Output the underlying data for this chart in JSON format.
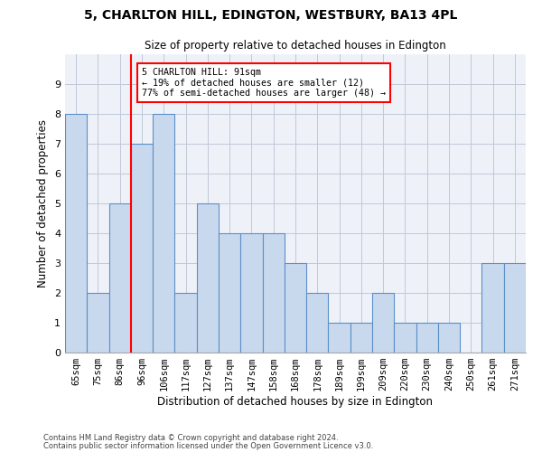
{
  "title": "5, CHARLTON HILL, EDINGTON, WESTBURY, BA13 4PL",
  "subtitle": "Size of property relative to detached houses in Edington",
  "xlabel": "Distribution of detached houses by size in Edington",
  "ylabel": "Number of detached properties",
  "footer1": "Contains HM Land Registry data © Crown copyright and database right 2024.",
  "footer2": "Contains public sector information licensed under the Open Government Licence v3.0.",
  "categories": [
    "65sqm",
    "75sqm",
    "86sqm",
    "96sqm",
    "106sqm",
    "117sqm",
    "127sqm",
    "137sqm",
    "147sqm",
    "158sqm",
    "168sqm",
    "178sqm",
    "189sqm",
    "199sqm",
    "209sqm",
    "220sqm",
    "230sqm",
    "240sqm",
    "250sqm",
    "261sqm",
    "271sqm"
  ],
  "values": [
    8,
    2,
    5,
    7,
    8,
    2,
    5,
    4,
    4,
    4,
    3,
    2,
    1,
    1,
    2,
    1,
    1,
    1,
    0,
    3,
    3
  ],
  "bar_color": "#c9d9ed",
  "bar_edgecolor": "#5b8fc9",
  "grid_color": "#c0c8d8",
  "bg_color": "#eef2f8",
  "property_line_x": 2.5,
  "annotation_text": "5 CHARLTON HILL: 91sqm\n← 19% of detached houses are smaller (12)\n77% of semi-detached houses are larger (48) →",
  "annotation_box_color": "white",
  "annotation_box_edgecolor": "red",
  "ylim": [
    0,
    10
  ],
  "yticks": [
    0,
    1,
    2,
    3,
    4,
    5,
    6,
    7,
    8,
    9,
    10
  ]
}
